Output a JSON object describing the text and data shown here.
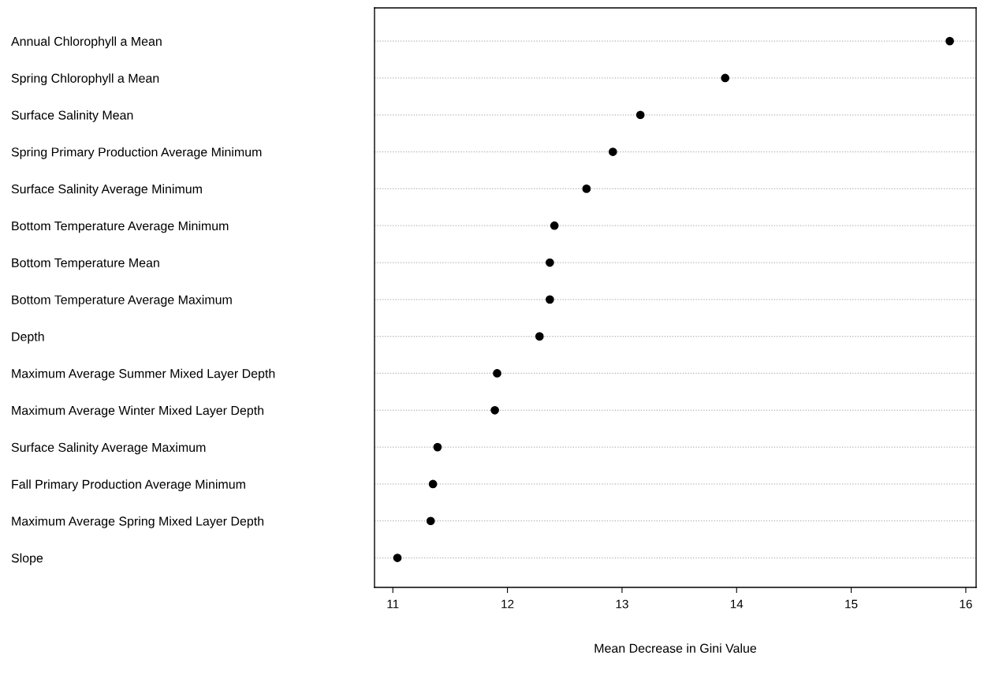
{
  "chart_data": {
    "type": "scatter",
    "orientation": "horizontal",
    "xlabel": "Mean Decrease in Gini Value",
    "categories": [
      "Annual Chlorophyll a Mean",
      "Spring Chlorophyll a Mean",
      "Surface Salinity Mean",
      "Spring Primary Production Average Minimum",
      "Surface Salinity Average Minimum",
      "Bottom Temperature Average Minimum",
      "Bottom Temperature Mean",
      "Bottom Temperature Average Maximum",
      "Depth",
      "Maximum Average Summer Mixed Layer Depth",
      "Maximum Average Winter Mixed Layer Depth",
      "Surface Salinity Average Maximum",
      "Fall Primary Production Average Minimum",
      "Maximum Average Spring Mixed Layer Depth",
      "Slope"
    ],
    "values": [
      15.86,
      13.9,
      13.16,
      12.92,
      12.69,
      12.41,
      12.37,
      12.37,
      12.28,
      11.91,
      11.89,
      11.39,
      11.35,
      11.33,
      11.04
    ],
    "color": "#000000",
    "marker": "circle",
    "grid": "y",
    "line_style": "dotted",
    "xlim": [
      10.84,
      16.09
    ],
    "xticks": [
      11,
      12,
      13,
      14,
      15,
      16
    ]
  }
}
